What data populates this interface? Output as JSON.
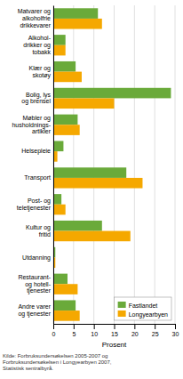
{
  "chart_data": {
    "type": "bar",
    "orientation": "horizontal",
    "categories": [
      "Matvarer og\nalkoholfrie\ndrikkevarer",
      "Alkohol-\ndrikker og\ntobakk",
      "Klær og\nskotøy",
      "Bolig, lys\nog brensel",
      "Møbler og\nhusholdnings-\nartikler",
      "Helsepleie",
      "Transport",
      "Post- og\nteletjenester",
      "Kultur og\nfritid",
      "Utdanning",
      "Restaurant-\nog hotell-\ntjenester",
      "Andre varer\nog tjenester"
    ],
    "series": [
      {
        "name": "Fastlandet",
        "color": "#6aaa3a",
        "values": [
          11,
          3,
          5.5,
          29,
          6,
          2.5,
          18,
          2,
          12,
          0.5,
          3.5,
          5.5
        ]
      },
      {
        "name": "Longyearbyen",
        "color": "#f5a800",
        "values": [
          12,
          3,
          7,
          15,
          6.5,
          1,
          22,
          3,
          19,
          0.5,
          6,
          6.5
        ]
      }
    ],
    "xlabel": "Prosent",
    "xlim": [
      0,
      30
    ],
    "xticks": [
      0,
      5,
      10,
      15,
      20,
      25,
      30
    ],
    "grid": true,
    "legend": "lower right",
    "annotations": [
      "Kilde: Forbruksundersøkelsen 2005-2007 og\nForbruksundersøkelsen i Longyearbyen 2007,\nStatistisk sentralbyrå."
    ]
  }
}
